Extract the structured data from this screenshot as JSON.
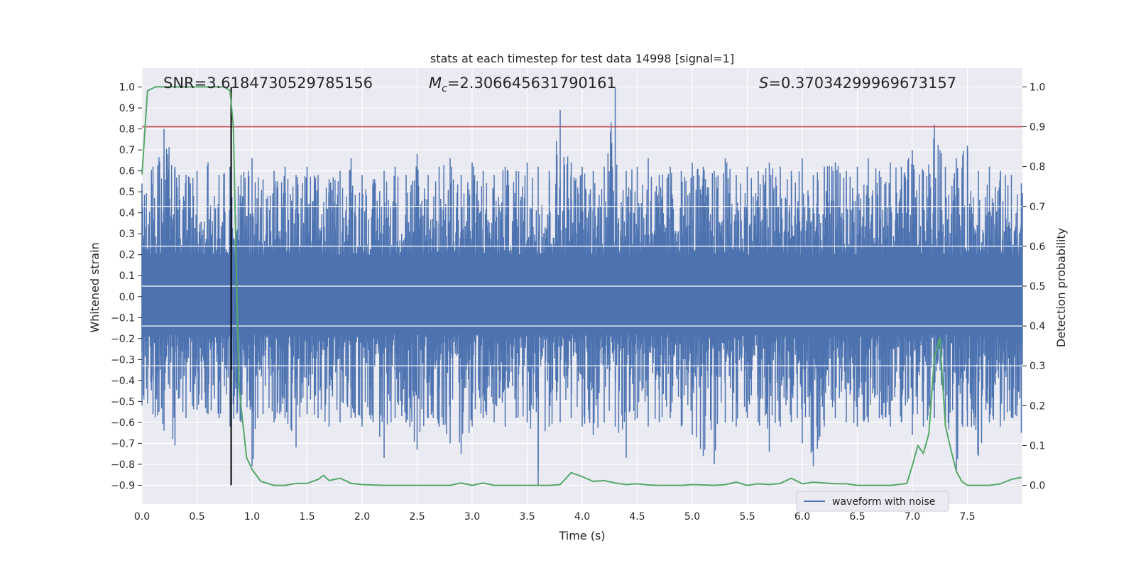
{
  "chart_data": {
    "type": "line",
    "title": "stats at each timestep for test data 14998 [signal=1]",
    "xlabel": "Time (s)",
    "ylabel": "Whitened strain",
    "ylabel_right": "Detection probability",
    "xlim": [
      0.0,
      8.0
    ],
    "ylim": [
      -0.99,
      1.09
    ],
    "ylim_right": [
      -0.047,
      1.047
    ],
    "x_ticks": [
      "0.0",
      "0.5",
      "1.0",
      "1.5",
      "2.0",
      "2.5",
      "3.0",
      "3.5",
      "4.0",
      "4.5",
      "5.0",
      "5.5",
      "6.0",
      "6.5",
      "7.0",
      "7.5"
    ],
    "y_ticks": [
      "-0.9",
      "-0.8",
      "-0.7",
      "-0.6",
      "-0.5",
      "-0.4",
      "-0.3",
      "-0.2",
      "-0.1",
      "0.0",
      "0.1",
      "0.2",
      "0.3",
      "0.4",
      "0.5",
      "0.6",
      "0.7",
      "0.8",
      "0.9",
      "1.0"
    ],
    "y_ticks_right": [
      "0.0",
      "0.1",
      "0.2",
      "0.3",
      "0.4",
      "0.5",
      "0.6",
      "0.7",
      "0.8",
      "0.9",
      "1.0"
    ],
    "grid": true,
    "legend_position": "lower-right",
    "annotations": {
      "snr": "SNR=3.6184730529785156",
      "mc_symbol": "M",
      "mc_subscript": "c",
      "mc_value": "=2.306645631790161",
      "s_symbol": "S",
      "s_value": "=0.37034299969673157"
    },
    "threshold_right": 0.9,
    "marker_time": 0.81,
    "marker_y_range": [
      -0.9,
      1.0
    ],
    "series": [
      {
        "name": "waveform with noise",
        "axis": "left",
        "color": "#4c72b0",
        "envelope_x": [
          0.0,
          0.1,
          0.2,
          0.3,
          0.4,
          0.5,
          0.6,
          0.7,
          0.8,
          0.9,
          1.0,
          1.1,
          1.2,
          1.3,
          1.4,
          1.5,
          1.6,
          1.7,
          1.8,
          1.9,
          2.0,
          2.1,
          2.2,
          2.3,
          2.4,
          2.5,
          2.6,
          2.7,
          2.8,
          2.9,
          3.0,
          3.1,
          3.2,
          3.3,
          3.4,
          3.5,
          3.6,
          3.7,
          3.8,
          3.9,
          4.0,
          4.1,
          4.2,
          4.3,
          4.4,
          4.5,
          4.6,
          4.7,
          4.8,
          4.9,
          5.0,
          5.1,
          5.2,
          5.3,
          5.4,
          5.5,
          5.6,
          5.7,
          5.8,
          5.9,
          6.0,
          6.1,
          6.2,
          6.3,
          6.4,
          6.5,
          6.6,
          6.7,
          6.8,
          6.9,
          7.0,
          7.1,
          7.2,
          7.3,
          7.4,
          7.5,
          7.6,
          7.7,
          7.8,
          7.9,
          7.99
        ],
        "envelope_max": [
          0.54,
          0.62,
          0.8,
          0.62,
          0.58,
          0.6,
          0.64,
          0.58,
          0.62,
          0.58,
          0.66,
          0.56,
          0.6,
          0.62,
          0.58,
          0.62,
          0.58,
          0.56,
          0.6,
          0.66,
          0.58,
          0.56,
          0.6,
          0.62,
          0.58,
          0.68,
          0.58,
          0.62,
          0.66,
          0.58,
          0.64,
          0.6,
          0.58,
          0.62,
          0.6,
          0.64,
          0.62,
          0.6,
          0.89,
          0.64,
          0.62,
          0.6,
          0.62,
          1.0,
          0.6,
          0.62,
          0.66,
          0.58,
          0.62,
          0.6,
          0.64,
          0.62,
          0.6,
          0.66,
          0.58,
          0.62,
          0.6,
          0.64,
          0.62,
          0.6,
          0.66,
          0.58,
          0.62,
          0.64,
          0.6,
          0.62,
          0.66,
          0.6,
          0.64,
          0.62,
          0.7,
          0.6,
          0.82,
          0.62,
          0.66,
          0.72,
          0.6,
          0.62,
          0.6,
          0.58,
          0.54
        ],
        "envelope_min": [
          -0.52,
          -0.56,
          -0.64,
          -0.71,
          -0.58,
          -0.54,
          -0.56,
          -0.58,
          -0.62,
          -0.6,
          -0.81,
          -0.56,
          -0.6,
          -0.58,
          -0.72,
          -0.56,
          -0.58,
          -0.62,
          -0.6,
          -0.58,
          -0.62,
          -0.6,
          -0.77,
          -0.58,
          -0.6,
          -0.73,
          -0.58,
          -0.62,
          -0.7,
          -0.75,
          -0.62,
          -0.58,
          -0.6,
          -0.62,
          -0.58,
          -0.6,
          -0.9,
          -0.62,
          -0.6,
          -0.58,
          -0.62,
          -0.66,
          -0.6,
          -0.62,
          -0.77,
          -0.58,
          -0.62,
          -0.6,
          -0.58,
          -0.62,
          -0.66,
          -0.76,
          -0.8,
          -0.6,
          -0.62,
          -0.58,
          -0.6,
          -0.74,
          -0.62,
          -0.6,
          -0.7,
          -0.81,
          -0.62,
          -0.58,
          -0.6,
          -0.62,
          -0.6,
          -0.58,
          -0.62,
          -0.6,
          -0.66,
          -0.62,
          -0.58,
          -0.6,
          -0.83,
          -0.62,
          -0.76,
          -0.6,
          -0.62,
          -0.58,
          -0.65
        ]
      },
      {
        "name": "",
        "axis": "right",
        "color": "#55a868",
        "x": [
          0.0,
          0.05,
          0.12,
          0.2,
          0.3,
          0.4,
          0.5,
          0.6,
          0.7,
          0.75,
          0.8,
          0.83,
          0.88,
          0.95,
          1.0,
          1.08,
          1.2,
          1.3,
          1.4,
          1.5,
          1.6,
          1.65,
          1.7,
          1.8,
          1.9,
          2.0,
          2.2,
          2.5,
          2.8,
          2.9,
          3.0,
          3.1,
          3.2,
          3.5,
          3.7,
          3.8,
          3.9,
          4.0,
          4.1,
          4.2,
          4.3,
          4.4,
          4.5,
          4.6,
          4.7,
          4.8,
          4.9,
          5.0,
          5.1,
          5.2,
          5.3,
          5.4,
          5.5,
          5.6,
          5.7,
          5.8,
          5.9,
          6.0,
          6.1,
          6.2,
          6.3,
          6.4,
          6.5,
          6.6,
          6.7,
          6.8,
          6.9,
          6.95,
          7.0,
          7.05,
          7.1,
          7.15,
          7.2,
          7.25,
          7.3,
          7.35,
          7.4,
          7.45,
          7.5,
          7.6,
          7.7,
          7.8,
          7.9,
          7.99
        ],
        "y": [
          0.78,
          0.99,
          1.0,
          1.0,
          1.0,
          1.0,
          1.0,
          1.0,
          1.0,
          1.0,
          0.99,
          0.9,
          0.25,
          0.07,
          0.04,
          0.01,
          0.0,
          0.0,
          0.005,
          0.005,
          0.015,
          0.025,
          0.012,
          0.018,
          0.005,
          0.002,
          0.0,
          0.0,
          0.0,
          0.006,
          0.0,
          0.006,
          0.0,
          0.0,
          0.0,
          0.002,
          0.032,
          0.022,
          0.01,
          0.012,
          0.006,
          0.002,
          0.004,
          0.001,
          0.0,
          0.0,
          0.0,
          0.002,
          0.001,
          0.0,
          0.002,
          0.008,
          0.0,
          0.004,
          0.002,
          0.005,
          0.018,
          0.004,
          0.008,
          0.006,
          0.004,
          0.004,
          0.0,
          0.0,
          0.0,
          0.0,
          0.003,
          0.005,
          0.05,
          0.1,
          0.08,
          0.13,
          0.32,
          0.37,
          0.15,
          0.09,
          0.035,
          0.01,
          0.0,
          0.0,
          0.0,
          0.004,
          0.015,
          0.02
        ]
      }
    ],
    "threshold_color": "#c44e52",
    "marker_color": "#000000"
  }
}
